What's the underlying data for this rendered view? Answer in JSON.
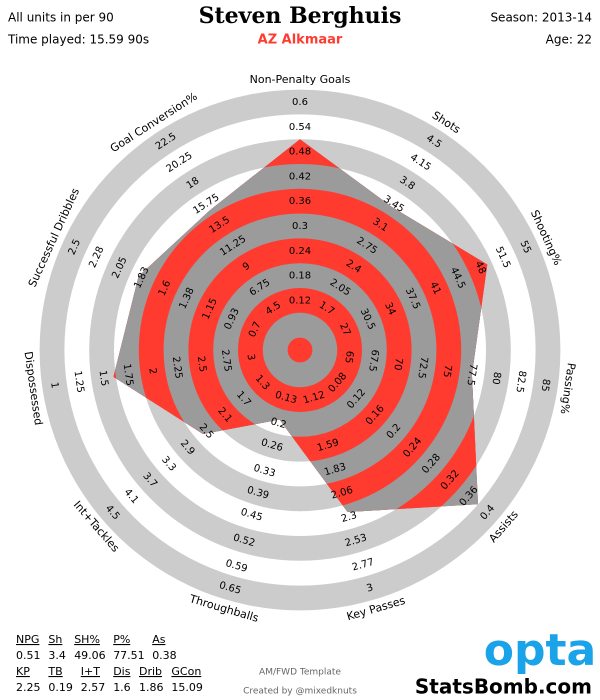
{
  "header": {
    "left": [
      "All units in per 90",
      "Time played: 15.59 90s"
    ],
    "right": [
      "Season: 2013-14",
      "Age: 22"
    ]
  },
  "chart_data": {
    "type": "radar",
    "title": "Steven Berghuis",
    "subtitle": "AZ Alkmaar",
    "color": "#ff3b30",
    "fill": "#9b9b9b",
    "ring_color": "#cccccc",
    "axes": [
      {
        "label": "Non-Penalty Goals",
        "lim": [
          0,
          0.6
        ],
        "ticks": [
          0.12,
          0.18,
          0.24,
          0.3,
          0.36,
          0.42,
          0.48,
          0.54,
          0.6
        ]
      },
      {
        "label": "Shots",
        "lim": [
          1.0,
          4.5
        ],
        "ticks": [
          1.7,
          2.05,
          2.4,
          2.75,
          3.1,
          3.45,
          3.8,
          4.15,
          4.5
        ]
      },
      {
        "label": "Shooting%",
        "lim": [
          20,
          55
        ],
        "ticks": [
          27,
          30.5,
          34,
          37.5,
          41,
          44.5,
          48,
          51.5,
          55
        ]
      },
      {
        "label": "Passing%",
        "lim": [
          60,
          85
        ],
        "ticks": [
          65,
          67.5,
          70,
          72.5,
          75,
          77.5,
          80,
          82.5,
          85
        ]
      },
      {
        "label": "Assists",
        "lim": [
          0,
          0.4
        ],
        "ticks": [
          0.08,
          0.12,
          0.16,
          0.2,
          0.24,
          0.28,
          0.32,
          0.36,
          0.4
        ]
      },
      {
        "label": "Key Passes",
        "lim": [
          0.65,
          3
        ],
        "ticks": [
          1.12,
          1.59,
          1.83,
          2.06,
          2.3,
          2.53,
          2.77,
          3
        ]
      },
      {
        "label": "Throughballs",
        "lim": [
          0,
          0.65
        ],
        "ticks": [
          0.13,
          0.2,
          0.26,
          0.33,
          0.39,
          0.45,
          0.52,
          0.59,
          0.65
        ]
      },
      {
        "label": "Int+Tackles",
        "lim": [
          0.5,
          4.5
        ],
        "ticks": [
          1.3,
          1.7,
          2.1,
          2.5,
          2.9,
          3.3,
          3.7,
          4.1,
          4.5
        ]
      },
      {
        "label": "Dispossessed",
        "lim": [
          3.5,
          1
        ],
        "ticks": [
          3,
          2.75,
          2.5,
          2.25,
          2,
          1.75,
          1.5,
          1.25,
          1
        ]
      },
      {
        "label": "Successful Dribbles",
        "lim": [
          0.25,
          2.5
        ],
        "ticks": [
          0.7,
          0.93,
          1.15,
          1.38,
          1.6,
          1.83,
          2.05,
          2.28,
          2.5
        ]
      },
      {
        "label": "Goal Conversion%",
        "lim": [
          0,
          22.5
        ],
        "ticks": [
          4.5,
          6.75,
          9,
          11.25,
          13.5,
          15.75,
          18,
          20.25,
          22.5
        ]
      }
    ],
    "values": [
      0.51,
      3.4,
      49.06,
      77.51,
      0.38,
      2.25,
      0.19,
      2.57,
      1.6,
      1.86,
      15.09
    ],
    "table_labels": [
      "NPG",
      "Sh",
      "SH%",
      "P%",
      "As",
      "KP",
      "TB",
      "I+T",
      "Dis",
      "Drib",
      "GCon"
    ]
  },
  "footer": {
    "template": "AM/FWD Template",
    "credit": "Created by @mixedknuts",
    "logo": "opta",
    "site": "StatsBomb.com"
  }
}
